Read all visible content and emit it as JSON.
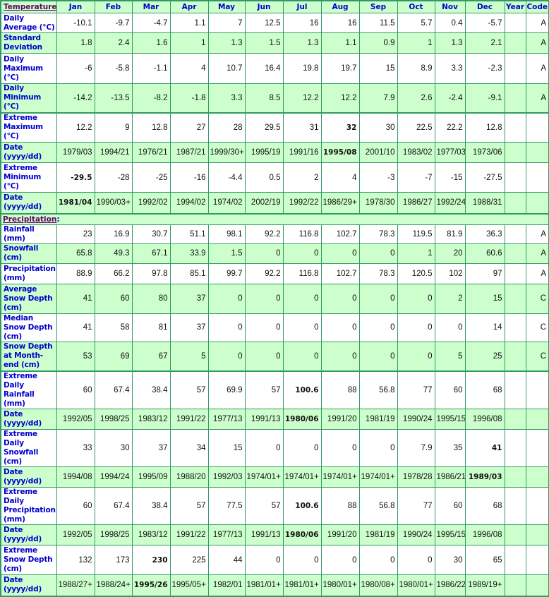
{
  "columns": [
    "Jan",
    "Feb",
    "Mar",
    "Apr",
    "May",
    "Jun",
    "Jul",
    "Aug",
    "Sep",
    "Oct",
    "Nov",
    "Dec",
    "Year",
    "Code"
  ],
  "sections": [
    {
      "title": "Temperature",
      "rows": [
        {
          "label": "Daily Average (°C)",
          "values": [
            "-10.1",
            "-9.7",
            "-4.7",
            "1.1",
            "7",
            "12.5",
            "16",
            "16",
            "11.5",
            "5.7",
            "0.4",
            "-5.7",
            "",
            "A"
          ],
          "bold": []
        },
        {
          "label": "Standard Deviation",
          "values": [
            "1.8",
            "2.4",
            "1.6",
            "1",
            "1.3",
            "1.5",
            "1.3",
            "1.1",
            "0.9",
            "1",
            "1.3",
            "2.1",
            "",
            "A"
          ],
          "bold": []
        },
        {
          "label": "Daily Maximum (°C)",
          "values": [
            "-6",
            "-5.8",
            "-1.1",
            "4",
            "10.7",
            "16.4",
            "19.8",
            "19.7",
            "15",
            "8.9",
            "3.3",
            "-2.3",
            "",
            "A"
          ],
          "bold": []
        },
        {
          "label": "Daily Minimum (°C)",
          "values": [
            "-14.2",
            "-13.5",
            "-8.2",
            "-1.8",
            "3.3",
            "8.5",
            "12.2",
            "12.2",
            "7.9",
            "2.6",
            "-2.4",
            "-9.1",
            "",
            "A"
          ],
          "bold": []
        },
        {
          "label": "Extreme Maximum (°C)",
          "values": [
            "12.2",
            "9",
            "12.8",
            "27",
            "28",
            "29.5",
            "31",
            "32",
            "30",
            "22.5",
            "22.2",
            "12.8",
            "",
            ""
          ],
          "bold": [
            7
          ]
        },
        {
          "label": "Date (yyyy/dd)",
          "values": [
            "1979/03",
            "1994/21",
            "1976/21",
            "1987/21",
            "1999/30+",
            "1995/19",
            "1991/16",
            "1995/08",
            "2001/10",
            "1983/02",
            "1977/03",
            "1973/06",
            "",
            ""
          ],
          "bold": [
            7
          ]
        },
        {
          "label": "Extreme Minimum (°C)",
          "values": [
            "-29.5",
            "-28",
            "-25",
            "-16",
            "-4.4",
            "0.5",
            "2",
            "4",
            "-3",
            "-7",
            "-15",
            "-27.5",
            "",
            ""
          ],
          "bold": [
            0
          ]
        },
        {
          "label": "Date (yyyy/dd)",
          "values": [
            "1981/04",
            "1990/03+",
            "1992/02",
            "1994/02",
            "1974/02",
            "2002/19",
            "1992/22",
            "1986/29+",
            "1978/30",
            "1986/27",
            "1992/24",
            "1988/31",
            "",
            ""
          ],
          "bold": [
            0
          ]
        }
      ]
    },
    {
      "title": "Precipitation",
      "rows": [
        {
          "label": "Rainfall (mm)",
          "values": [
            "23",
            "16.9",
            "30.7",
            "51.1",
            "98.1",
            "92.2",
            "116.8",
            "102.7",
            "78.3",
            "119.5",
            "81.9",
            "36.3",
            "",
            "A"
          ],
          "bold": []
        },
        {
          "label": "Snowfall (cm)",
          "values": [
            "65.8",
            "49.3",
            "67.1",
            "33.9",
            "1.5",
            "0",
            "0",
            "0",
            "0",
            "1",
            "20",
            "60.6",
            "",
            "A"
          ],
          "bold": []
        },
        {
          "label": "Precipitation (mm)",
          "values": [
            "88.9",
            "66.2",
            "97.8",
            "85.1",
            "99.7",
            "92.2",
            "116.8",
            "102.7",
            "78.3",
            "120.5",
            "102",
            "97",
            "",
            "A"
          ],
          "bold": []
        },
        {
          "label": "Average Snow Depth (cm)",
          "values": [
            "41",
            "60",
            "80",
            "37",
            "0",
            "0",
            "0",
            "0",
            "0",
            "0",
            "2",
            "15",
            "",
            "C"
          ],
          "bold": []
        },
        {
          "label": "Median Snow Depth (cm)",
          "values": [
            "41",
            "58",
            "81",
            "37",
            "0",
            "0",
            "0",
            "0",
            "0",
            "0",
            "0",
            "14",
            "",
            "C"
          ],
          "bold": []
        },
        {
          "label": "Snow Depth at Month-end (cm)",
          "values": [
            "53",
            "69",
            "67",
            "5",
            "0",
            "0",
            "0",
            "0",
            "0",
            "0",
            "5",
            "25",
            "",
            "C"
          ],
          "bold": []
        },
        {
          "label": "Extreme Daily Rainfall (mm)",
          "values": [
            "60",
            "67.4",
            "38.4",
            "57",
            "69.9",
            "57",
            "100.6",
            "88",
            "56.8",
            "77",
            "60",
            "68",
            "",
            ""
          ],
          "bold": [
            6
          ]
        },
        {
          "label": "Date (yyyy/dd)",
          "values": [
            "1992/05",
            "1998/25",
            "1983/12",
            "1991/22",
            "1977/13",
            "1991/13",
            "1980/06",
            "1991/20",
            "1981/19",
            "1990/24",
            "1995/15",
            "1996/08",
            "",
            ""
          ],
          "bold": [
            6
          ]
        },
        {
          "label": "Extreme Daily Snowfall (cm)",
          "values": [
            "33",
            "30",
            "37",
            "34",
            "15",
            "0",
            "0",
            "0",
            "0",
            "7.9",
            "35",
            "41",
            "",
            ""
          ],
          "bold": [
            11
          ]
        },
        {
          "label": "Date (yyyy/dd)",
          "values": [
            "1994/08",
            "1994/24",
            "1995/09",
            "1988/20",
            "1992/03",
            "1974/01+",
            "1974/01+",
            "1974/01+",
            "1974/01+",
            "1978/28",
            "1986/21",
            "1989/03",
            "",
            ""
          ],
          "bold": [
            11
          ]
        },
        {
          "label": "Extreme Daily Precipitation (mm)",
          "values": [
            "60",
            "67.4",
            "38.4",
            "57",
            "77.5",
            "57",
            "100.6",
            "88",
            "56.8",
            "77",
            "60",
            "68",
            "",
            ""
          ],
          "bold": [
            6
          ]
        },
        {
          "label": "Date (yyyy/dd)",
          "values": [
            "1992/05",
            "1998/25",
            "1983/12",
            "1991/22",
            "1977/13",
            "1991/13",
            "1980/06",
            "1991/20",
            "1981/19",
            "1990/24",
            "1995/15",
            "1996/08",
            "",
            ""
          ],
          "bold": [
            6
          ]
        },
        {
          "label": "Extreme Snow Depth (cm)",
          "values": [
            "132",
            "173",
            "230",
            "225",
            "44",
            "0",
            "0",
            "0",
            "0",
            "0",
            "30",
            "65",
            "",
            ""
          ],
          "bold": [
            2
          ]
        },
        {
          "label": "Date (yyyy/dd)",
          "values": [
            "1988/27+",
            "1988/24+",
            "1995/26",
            "1995/05+",
            "1982/01",
            "1981/01+",
            "1981/01+",
            "1980/01+",
            "1980/08+",
            "1980/01+",
            "1986/22",
            "1989/19+",
            "",
            ""
          ],
          "bold": [
            2
          ]
        }
      ]
    }
  ],
  "colors": {
    "border": "#339966",
    "row_alt": "#ccffcc",
    "label": "#0000cc",
    "section_link": "#660066"
  }
}
